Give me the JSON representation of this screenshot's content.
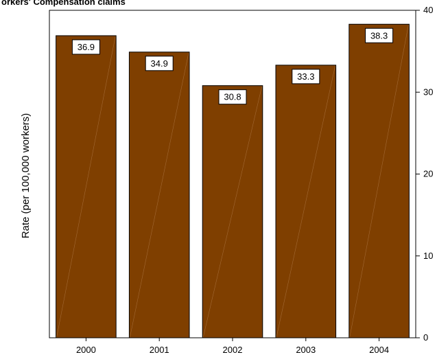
{
  "chart_data": {
    "type": "bar",
    "title": "orkers' Compensation claims",
    "ylabel": "Rate (per 100,000 workers)",
    "xlabel": "",
    "categories": [
      "2000",
      "2001",
      "2002",
      "2003",
      "2004"
    ],
    "values": [
      36.9,
      34.9,
      30.8,
      33.3,
      38.3
    ],
    "data_labels": [
      "36.9",
      "34.9",
      "30.8",
      "33.3",
      "38.3"
    ],
    "ylim": [
      0,
      40
    ],
    "yticks": [
      0,
      10,
      20,
      30,
      40
    ],
    "y_axis_side": "right",
    "grid": false,
    "legend": "none",
    "bar_color": "#7f3f00",
    "bar_edge_color": "#000000",
    "label_box_color": "#ffffff"
  }
}
